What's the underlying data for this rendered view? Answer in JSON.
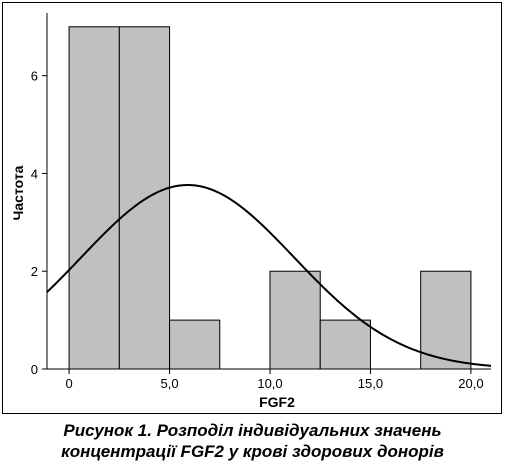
{
  "chart_data": {
    "type": "bar",
    "subtype": "histogram",
    "xlabel": "FGF2",
    "ylabel": "Частота",
    "xlim": [
      -1.1,
      21.0
    ],
    "ylim": [
      0,
      7.2
    ],
    "x_ticks": [
      {
        "value": 0,
        "label": "0"
      },
      {
        "value": 5,
        "label": "5,0"
      },
      {
        "value": 10,
        "label": "10,0"
      },
      {
        "value": 15,
        "label": "15,0"
      },
      {
        "value": 20,
        "label": "20,0"
      }
    ],
    "y_ticks": [
      {
        "value": 0,
        "label": "0"
      },
      {
        "value": 2,
        "label": "2"
      },
      {
        "value": 4,
        "label": "4"
      },
      {
        "value": 6,
        "label": "6"
      }
    ],
    "bins": [
      {
        "start": 0.0,
        "end": 2.5,
        "count": 7
      },
      {
        "start": 2.5,
        "end": 5.0,
        "count": 7
      },
      {
        "start": 5.0,
        "end": 7.5,
        "count": 1
      },
      {
        "start": 7.5,
        "end": 10.0,
        "count": 0
      },
      {
        "start": 10.0,
        "end": 12.5,
        "count": 2
      },
      {
        "start": 12.5,
        "end": 15.0,
        "count": 1
      },
      {
        "start": 15.0,
        "end": 17.5,
        "count": 0
      },
      {
        "start": 17.5,
        "end": 20.0,
        "count": 2
      }
    ],
    "normal_curve": {
      "mean": 5.9,
      "std": 5.3,
      "n": 20,
      "bin_width": 2.5
    },
    "bar_color": "#c0c0c0",
    "curve_color": "#000000",
    "grid": false,
    "legend": "none"
  },
  "caption": {
    "line1": "Рисунок 1.  Розподіл індивідуальних значень",
    "line2": "концентрації FGF2 у крові здорових донорів"
  }
}
